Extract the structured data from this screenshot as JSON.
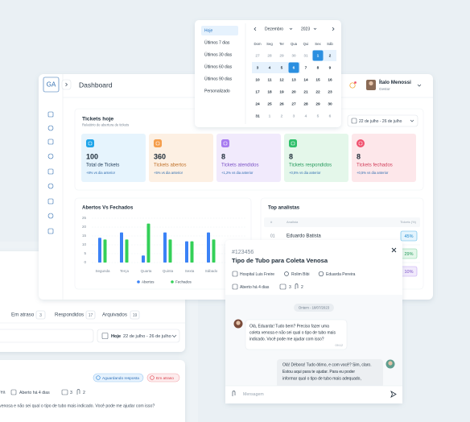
{
  "header": {
    "logo": "GA",
    "title": "Dashboard",
    "user_name": "Ítalo Menossi",
    "user_role": "Gestor"
  },
  "date_picker": {
    "presets": [
      "Hoje",
      "Últimos 7 dias",
      "Últimos 30 dias",
      "Últimos 60 dias",
      "Últimos 90 dias",
      "Personalizado"
    ],
    "month": "Dezembro",
    "year": "2023",
    "weekdays": [
      "Dom",
      "Seg",
      "Ter",
      "Qua",
      "Qui",
      "Sex",
      "Sáb"
    ],
    "weeks": [
      [
        27,
        28,
        29,
        30,
        31,
        1,
        2
      ],
      [
        3,
        4,
        5,
        6,
        7,
        8,
        9
      ],
      [
        10,
        11,
        12,
        13,
        14,
        15,
        16
      ],
      [
        17,
        18,
        19,
        20,
        21,
        22,
        23
      ],
      [
        24,
        25,
        26,
        27,
        28,
        29,
        30
      ],
      [
        31,
        1,
        2,
        3,
        4,
        5,
        6
      ]
    ]
  },
  "tickets_today": {
    "title": "Tickets hoje",
    "subtitle": "Relatório de abertura de tickets",
    "date_range": "22 de julho - 26 de julho",
    "cards": [
      {
        "value": 100,
        "label": "Total de Tickets",
        "delta": "+8% vs dia anterior"
      },
      {
        "value": 360,
        "label": "Tickets abertos",
        "delta": "+5% vs dia anterior"
      },
      {
        "value": 8,
        "label": "Tickets atendidos",
        "delta": "+1,2% vs dia anterior"
      },
      {
        "value": 8,
        "label": "Tickets respondidos",
        "delta": "+0,5% vs dia anterior"
      },
      {
        "value": 8,
        "label": "Tickets fechados",
        "delta": "+0,5% vs dia anterior"
      }
    ]
  },
  "chart": {
    "type": "bar",
    "title": "Abertos Vs Fechados",
    "categories": [
      "Segunda",
      "Terça",
      "Quarta",
      "Quinta",
      "Sexta",
      "Sábado"
    ],
    "series": [
      {
        "name": "Abertos",
        "color": "#3b82f6",
        "values": [
          14,
          17,
          4,
          17,
          12,
          17
        ]
      },
      {
        "name": "Fechados",
        "color": "#34d058",
        "values": [
          13,
          13,
          22,
          13,
          12,
          13
        ]
      }
    ],
    "ylim": [
      0,
      25
    ],
    "yticks": [
      0,
      5,
      10,
      15,
      20,
      25
    ],
    "grid": true
  },
  "top_analysts": {
    "title": "Top analistas",
    "columns": [
      "#",
      "Analista",
      "Tickets (%)"
    ],
    "rows": [
      {
        "rank": "01",
        "name": "Eduardo Batista",
        "share": "45%"
      },
      {
        "share": "29%"
      },
      {
        "share": "10%"
      }
    ]
  },
  "ticket_list": {
    "tabs": [
      {
        "label": "Em atraso",
        "count": 3
      },
      {
        "label": "Respondidos",
        "count": 17
      },
      {
        "label": "Arquivados",
        "count": 19
      }
    ],
    "date_label": "Hoje",
    "date_range": "22 de julho - 26 de julho",
    "item": {
      "status": "Aguardando resposta",
      "flag": "Em atraso",
      "area": "rea",
      "opened": "Aberto há 4 dias",
      "messages": 3,
      "attachments": 2,
      "preview": "venosa e não sei qual o tipo de tubo mais indicado. Você pode me ajudar com isso?"
    }
  },
  "ticket_modal": {
    "id": "#123456",
    "title": "Tipo de Tubo para Coleta Venosa",
    "hospital": "Hospital Luis Freire",
    "location": "Rolim Bibi",
    "assignee": "Eduarda Pereira",
    "opened": "Aberto há 4 dias",
    "messages": 3,
    "attachments": 2,
    "date": "Ontem - 18/07/2023",
    "chat": [
      {
        "lines": [
          "Olá, Eduarda! Tudo bem? Preciso fazer uma",
          "coleta venosa e não sei qual o tipo de tubo mais",
          "indicado. Você pode me ajudar com isso?"
        ],
        "time": "09:12"
      },
      {
        "lines": [
          "Olá! Débora! Tudo ótimo, e com você? Sim, claro.",
          "Estou aqui para te ajudar. Para eu poder",
          "informar qual o tipo de tubo mais adequado,"
        ]
      }
    ],
    "placeholder": "Mensagem"
  }
}
